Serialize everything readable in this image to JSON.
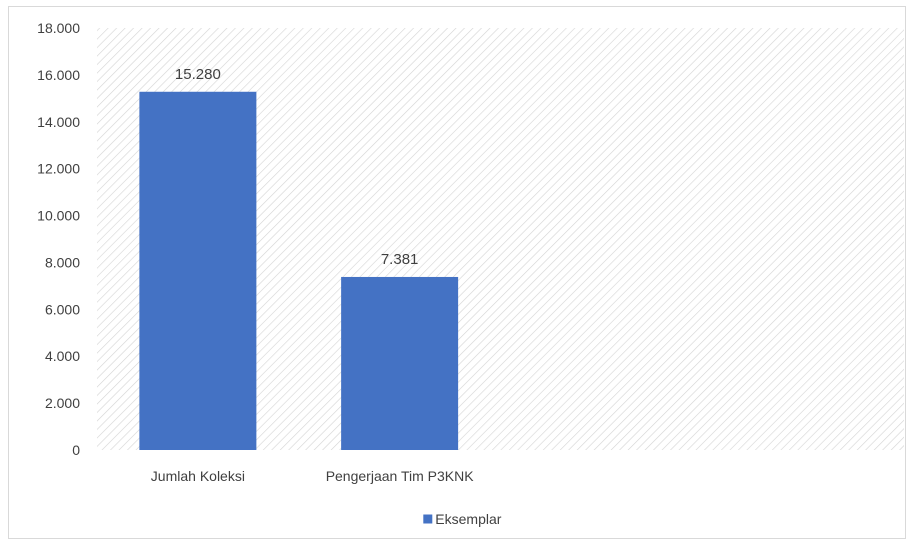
{
  "chart_data": {
    "type": "bar",
    "categories": [
      "Jumlah Koleksi",
      "Pengerjaan Tim P3KNK"
    ],
    "series": [
      {
        "name": "Eksemplar",
        "values": [
          15280,
          7381
        ],
        "value_labels": [
          "15.280",
          "7.381"
        ],
        "color": "#4472c4"
      }
    ],
    "ylim": [
      0,
      18000
    ],
    "yticks": [
      0,
      2000,
      4000,
      6000,
      8000,
      10000,
      12000,
      14000,
      16000,
      18000
    ],
    "ytick_labels": [
      "0",
      "2.000",
      "4.000",
      "6.000",
      "8.000",
      "10.000",
      "12.000",
      "14.000",
      "16.000",
      "18.000"
    ],
    "category_slots": 4,
    "plot_background": "diagonal-hatch",
    "legend_position": "bottom",
    "title": "",
    "xlabel": "",
    "ylabel": ""
  }
}
